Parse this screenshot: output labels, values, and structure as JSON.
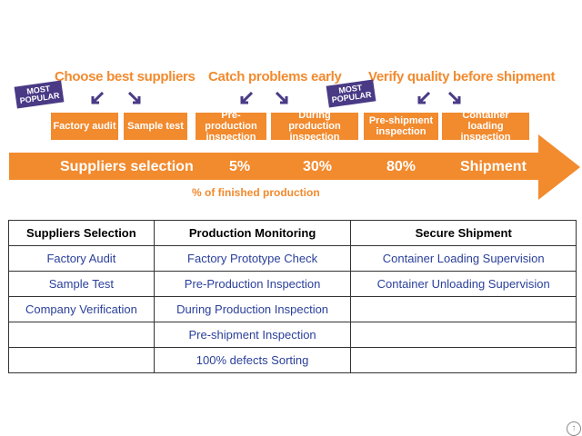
{
  "diagram": {
    "headings": {
      "choose": "Choose best suppliers",
      "catch": "Catch problems early",
      "verify": "Verify quality before shipment"
    },
    "badge_text": [
      "MOST",
      "POPULAR"
    ],
    "boxes": {
      "factory_audit": "Factory audit",
      "sample_test": "Sample test",
      "pre_production": "Pre-production inspection",
      "during_production": "During production inspection",
      "pre_shipment": "Pre-shipment inspection",
      "container_loading": "Container loading inspection"
    },
    "band": {
      "suppliers": "Suppliers selection",
      "p5": "5%",
      "p30": "30%",
      "p80": "80%",
      "shipment": "Shipment"
    },
    "caption": "% of finished production",
    "colors": {
      "orange": "#f28a2e",
      "badge": "#4a3a86",
      "link": "#2a3f9a"
    }
  },
  "table": {
    "headers": [
      "Suppliers Selection",
      "Production Monitoring",
      "Secure Shipment"
    ],
    "rows": [
      [
        "Factory Audit",
        "Factory Prototype Check",
        "Container Loading Supervision"
      ],
      [
        "Sample Test",
        "Pre-Production Inspection",
        "Container Unloading Supervision"
      ],
      [
        "Company Verification",
        "During Production Inspection",
        ""
      ],
      [
        "",
        "Pre-shipment Inspection",
        ""
      ],
      [
        "",
        "100% defects Sorting",
        ""
      ]
    ]
  }
}
